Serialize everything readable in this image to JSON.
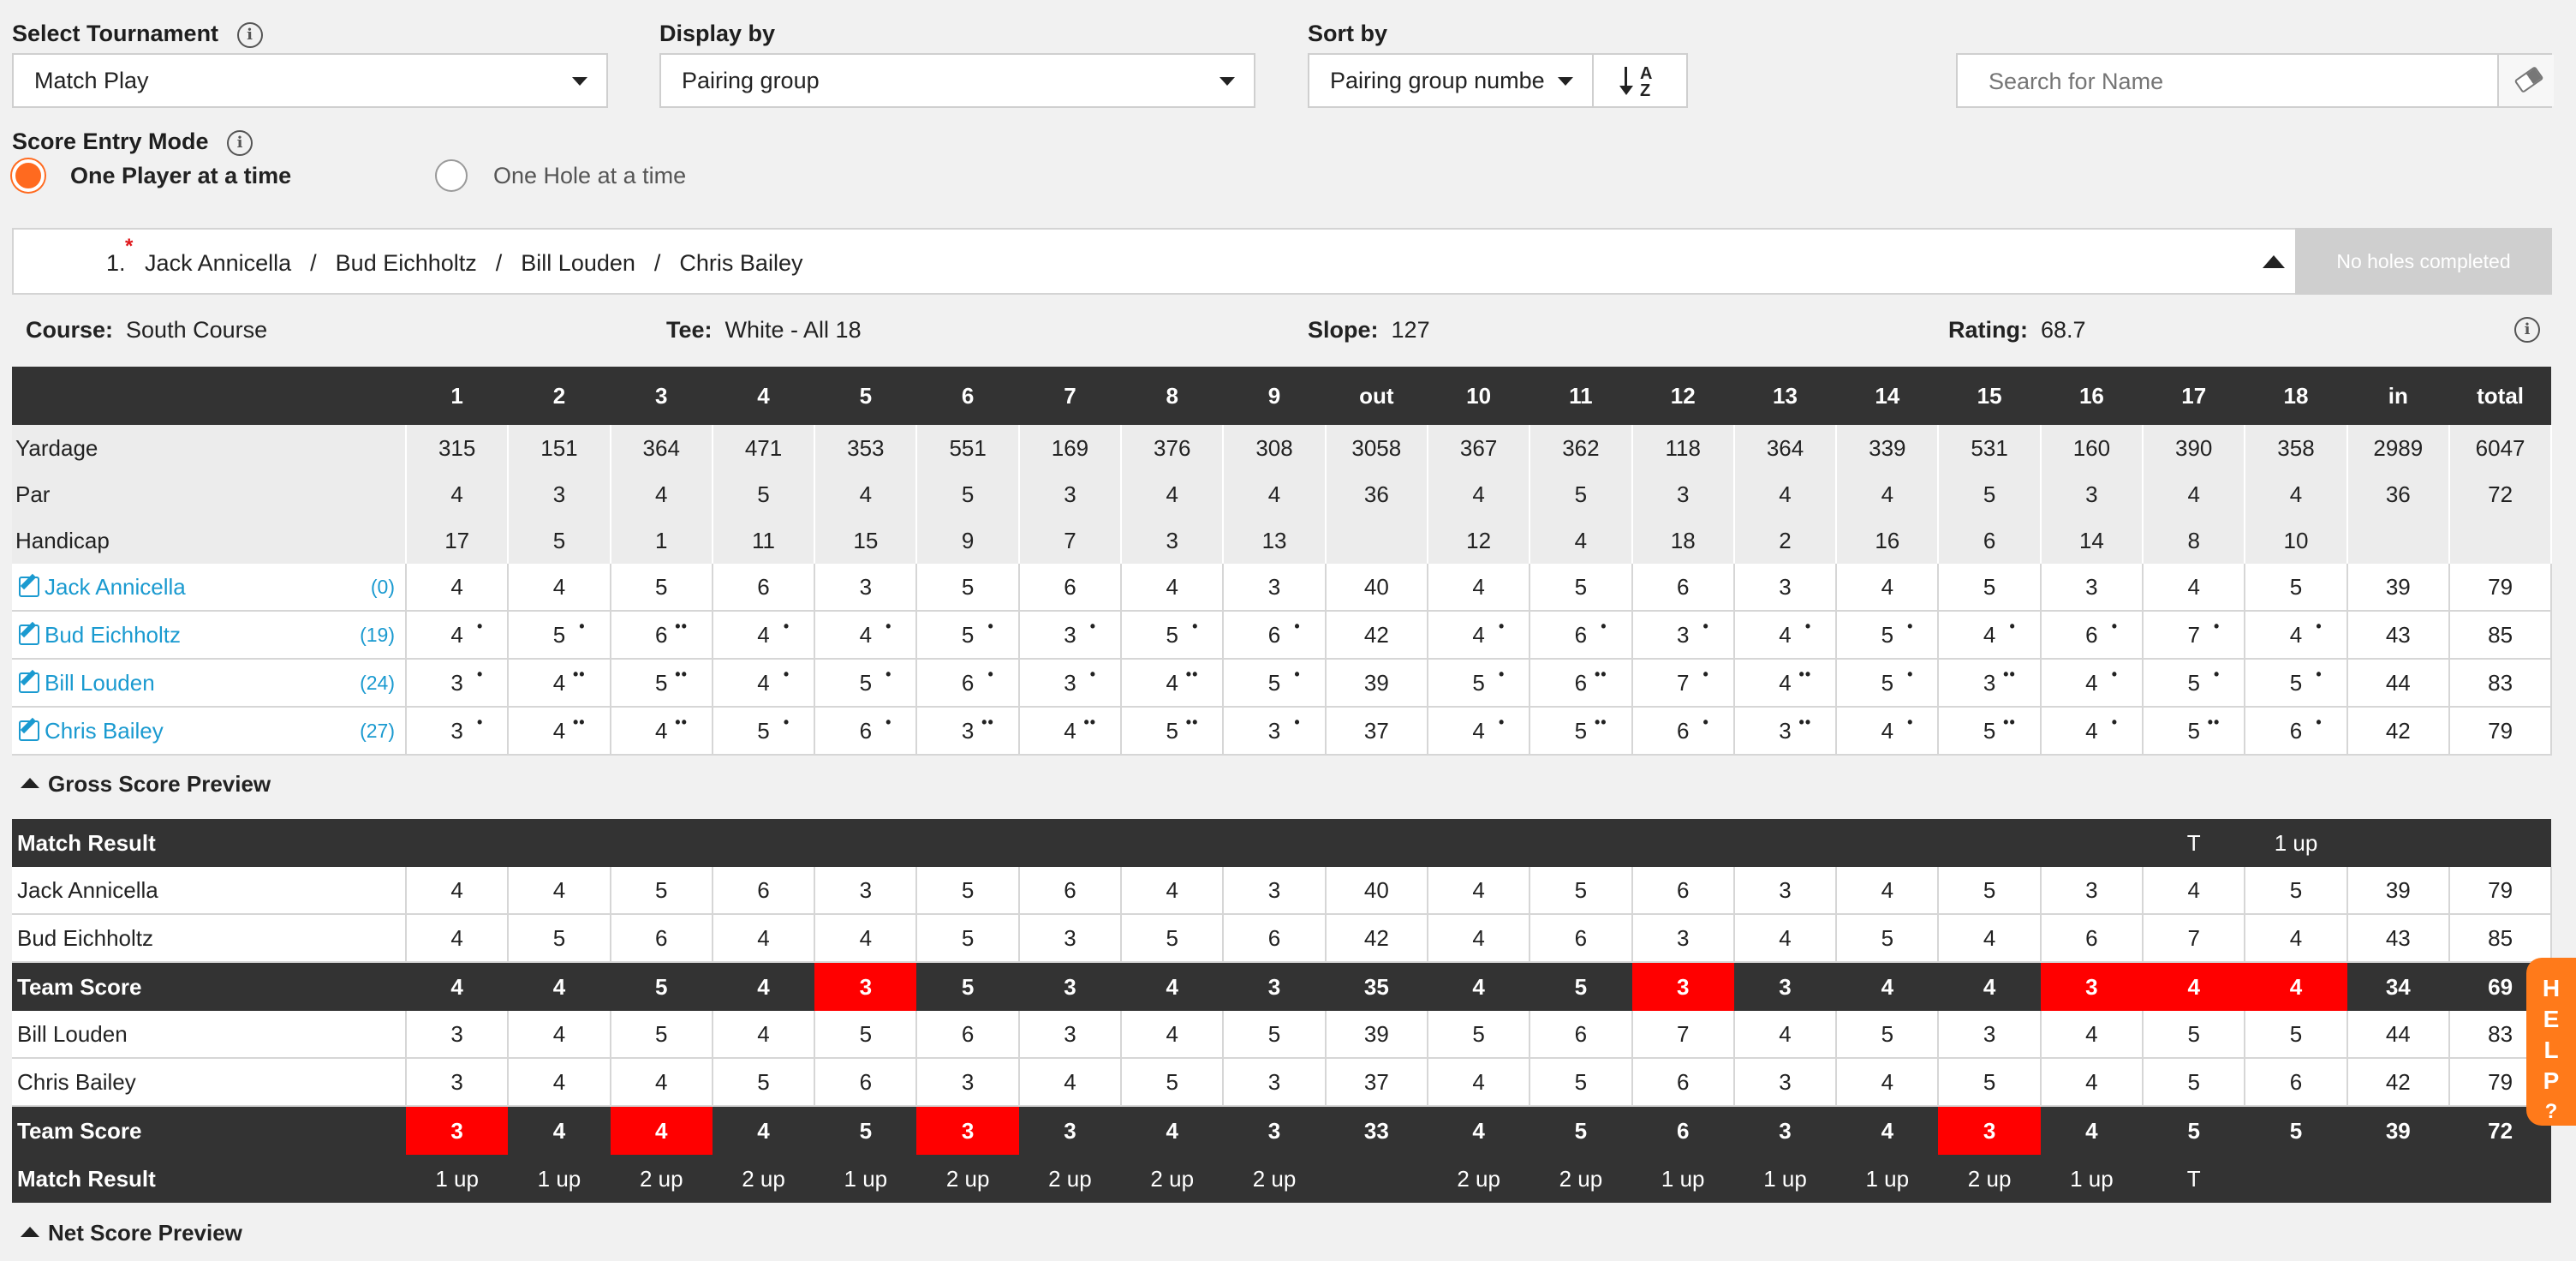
{
  "filters": {
    "tournament_label": "Select Tournament",
    "tournament_value": "Match Play",
    "display_label": "Display by",
    "display_value": "Pairing group",
    "sort_label": "Sort by",
    "sort_value": "Pairing group numbe",
    "sort_icon_top": "A",
    "sort_icon_bottom": "Z",
    "search_placeholder": "Search for Name",
    "info_glyph": "i"
  },
  "entry_mode": {
    "label": "Score Entry Mode",
    "options": [
      "One Player at a time",
      "One Hole at a time"
    ],
    "selected": 0
  },
  "pairing": {
    "number": "1.",
    "players": [
      "Jack Annicella",
      "Bud Eichholtz",
      "Bill Louden",
      "Chris Bailey"
    ],
    "separator": "/",
    "required_mark": "*",
    "status": "No holes completed"
  },
  "course": {
    "course_label": "Course:",
    "course_value": "South Course",
    "tee_label": "Tee:",
    "tee_value": "White - All 18",
    "slope_label": "Slope:",
    "slope_value": "127",
    "rating_label": "Rating:",
    "rating_value": "68.7"
  },
  "scorecard": {
    "columns": [
      "1",
      "2",
      "3",
      "4",
      "5",
      "6",
      "7",
      "8",
      "9",
      "out",
      "10",
      "11",
      "12",
      "13",
      "14",
      "15",
      "16",
      "17",
      "18",
      "in",
      "total"
    ],
    "info_rows": [
      {
        "label": "Yardage",
        "values": [
          "315",
          "151",
          "364",
          "471",
          "353",
          "551",
          "169",
          "376",
          "308",
          "3058",
          "367",
          "362",
          "118",
          "364",
          "339",
          "531",
          "160",
          "390",
          "358",
          "2989",
          "6047"
        ]
      },
      {
        "label": "Par",
        "values": [
          "4",
          "3",
          "4",
          "5",
          "4",
          "5",
          "3",
          "4",
          "4",
          "36",
          "4",
          "5",
          "3",
          "4",
          "4",
          "5",
          "3",
          "4",
          "4",
          "36",
          "72"
        ]
      },
      {
        "label": "Handicap",
        "values": [
          "17",
          "5",
          "1",
          "11",
          "15",
          "9",
          "7",
          "3",
          "13",
          "",
          "12",
          "4",
          "18",
          "2",
          "16",
          "6",
          "14",
          "8",
          "10",
          "",
          ""
        ]
      }
    ],
    "players": [
      {
        "name": "Jack Annicella",
        "hcp": "(0)",
        "scores": [
          "4",
          "4",
          "5",
          "6",
          "3",
          "5",
          "6",
          "4",
          "3",
          "40",
          "4",
          "5",
          "6",
          "3",
          "4",
          "5",
          "3",
          "4",
          "5",
          "39",
          "79"
        ],
        "dots": [
          "",
          "",
          "",
          "",
          "",
          "",
          "",
          "",
          "",
          "",
          "",
          "",
          "",
          "",
          "",
          "",
          "",
          "",
          "",
          "",
          ""
        ]
      },
      {
        "name": "Bud Eichholtz",
        "hcp": "(19)",
        "scores": [
          "4",
          "5",
          "6",
          "4",
          "4",
          "5",
          "3",
          "5",
          "6",
          "42",
          "4",
          "6",
          "3",
          "4",
          "5",
          "4",
          "6",
          "7",
          "4",
          "43",
          "85"
        ],
        "dots": [
          "•",
          "•",
          "••",
          "•",
          "•",
          "•",
          "•",
          "•",
          "•",
          "",
          "•",
          "•",
          "•",
          "•",
          "•",
          "•",
          "•",
          "•",
          "•",
          "",
          ""
        ]
      },
      {
        "name": "Bill Louden",
        "hcp": "(24)",
        "scores": [
          "3",
          "4",
          "5",
          "4",
          "5",
          "6",
          "3",
          "4",
          "5",
          "39",
          "5",
          "6",
          "7",
          "4",
          "5",
          "3",
          "4",
          "5",
          "5",
          "44",
          "83"
        ],
        "dots": [
          "•",
          "••",
          "••",
          "•",
          "•",
          "•",
          "•",
          "••",
          "•",
          "",
          "•",
          "••",
          "•",
          "••",
          "•",
          "••",
          "•",
          "•",
          "•",
          "",
          ""
        ]
      },
      {
        "name": "Chris Bailey",
        "hcp": "(27)",
        "scores": [
          "3",
          "4",
          "4",
          "5",
          "6",
          "3",
          "4",
          "5",
          "3",
          "37",
          "4",
          "5",
          "6",
          "3",
          "4",
          "5",
          "4",
          "5",
          "6",
          "42",
          "79"
        ],
        "dots": [
          "•",
          "••",
          "••",
          "•",
          "•",
          "••",
          "••",
          "••",
          "•",
          "",
          "•",
          "••",
          "•",
          "••",
          "•",
          "••",
          "•",
          "••",
          "•",
          "",
          ""
        ]
      }
    ]
  },
  "gross_preview": {
    "title": "Gross Score Preview",
    "match_result_label": "Match Result",
    "top_result": [
      "",
      "",
      "",
      "",
      "",
      "",
      "",
      "",
      "",
      "",
      "",
      "",
      "",
      "",
      "",
      "",
      "",
      "T",
      "1 up",
      "",
      ""
    ],
    "team_a": [
      {
        "name": "Jack Annicella",
        "scores": [
          "4",
          "4",
          "5",
          "6",
          "3",
          "5",
          "6",
          "4",
          "3",
          "40",
          "4",
          "5",
          "6",
          "3",
          "4",
          "5",
          "3",
          "4",
          "5",
          "39",
          "79"
        ]
      },
      {
        "name": "Bud Eichholtz",
        "scores": [
          "4",
          "5",
          "6",
          "4",
          "4",
          "5",
          "3",
          "5",
          "6",
          "42",
          "4",
          "6",
          "3",
          "4",
          "5",
          "4",
          "6",
          "7",
          "4",
          "43",
          "85"
        ]
      }
    ],
    "team_score_label": "Team Score",
    "team_a_score": [
      "4",
      "4",
      "5",
      "4",
      "3",
      "5",
      "3",
      "4",
      "3",
      "35",
      "4",
      "5",
      "3",
      "3",
      "4",
      "4",
      "3",
      "4",
      "4",
      "34",
      "69"
    ],
    "team_a_red": [
      false,
      false,
      false,
      false,
      true,
      false,
      false,
      false,
      false,
      false,
      false,
      false,
      true,
      false,
      false,
      false,
      true,
      true,
      true,
      false,
      false
    ],
    "team_b": [
      {
        "name": "Bill Louden",
        "scores": [
          "3",
          "4",
          "5",
          "4",
          "5",
          "6",
          "3",
          "4",
          "5",
          "39",
          "5",
          "6",
          "7",
          "4",
          "5",
          "3",
          "4",
          "5",
          "5",
          "44",
          "83"
        ]
      },
      {
        "name": "Chris Bailey",
        "scores": [
          "3",
          "4",
          "4",
          "5",
          "6",
          "3",
          "4",
          "5",
          "3",
          "37",
          "4",
          "5",
          "6",
          "3",
          "4",
          "5",
          "4",
          "5",
          "6",
          "42",
          "79"
        ]
      }
    ],
    "team_b_score": [
      "3",
      "4",
      "4",
      "4",
      "5",
      "3",
      "3",
      "4",
      "3",
      "33",
      "4",
      "5",
      "6",
      "3",
      "4",
      "3",
      "4",
      "5",
      "5",
      "39",
      "72"
    ],
    "team_b_red": [
      true,
      false,
      true,
      false,
      false,
      true,
      false,
      false,
      false,
      false,
      false,
      false,
      false,
      false,
      false,
      true,
      false,
      false,
      false,
      false,
      false
    ],
    "bottom_result": [
      "1 up",
      "1 up",
      "2 up",
      "2 up",
      "1 up",
      "2 up",
      "2 up",
      "2 up",
      "2 up",
      "",
      "2 up",
      "2 up",
      "1 up",
      "1 up",
      "1 up",
      "2 up",
      "1 up",
      "T",
      "",
      "",
      ""
    ]
  },
  "net_preview": {
    "title": "Net Score Preview"
  },
  "help": {
    "letters": [
      "H",
      "E",
      "L",
      "P",
      "?"
    ]
  },
  "colors": {
    "accent": "#ff6a1f",
    "link": "#1a9ad0",
    "highlight": "#ff0000",
    "header": "#333333"
  }
}
